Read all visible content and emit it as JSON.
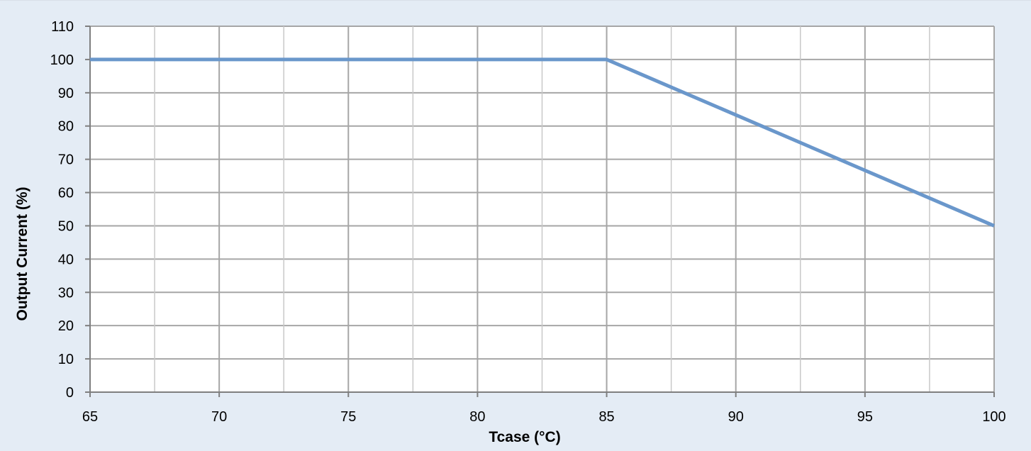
{
  "chart_data": {
    "type": "line",
    "title": "",
    "xlabel": "Tcase (°C)",
    "ylabel": "Output Current (%)",
    "xlim": [
      65,
      100
    ],
    "ylim": [
      0,
      110
    ],
    "x_ticks": [
      "65",
      "70",
      "75",
      "80",
      "85",
      "90",
      "95",
      "100"
    ],
    "y_ticks": [
      "0",
      "10",
      "20",
      "30",
      "40",
      "50",
      "60",
      "70",
      "80",
      "90",
      "100",
      "110"
    ],
    "x_tick_values": [
      65,
      70,
      75,
      80,
      85,
      90,
      95,
      100
    ],
    "y_tick_values": [
      0,
      10,
      20,
      30,
      40,
      50,
      60,
      70,
      80,
      90,
      100,
      110
    ],
    "minor_x_gridlines": [
      67.5,
      72.5,
      77.5,
      82.5,
      87.5,
      92.5,
      97.5
    ],
    "grid": true,
    "legend": "none",
    "series": [
      {
        "x": [
          65,
          85,
          100
        ],
        "values": [
          100,
          100,
          50
        ],
        "color": "#6a97cb"
      }
    ],
    "colors": {
      "background": "#e4ecf5",
      "plot_background": "#ffffff",
      "grid": "#a6a6a6",
      "axis": "#7f7f7f"
    }
  }
}
